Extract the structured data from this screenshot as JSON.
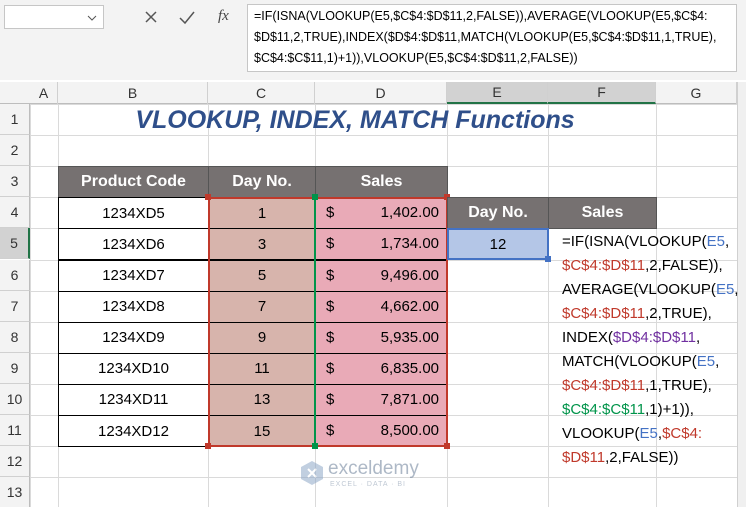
{
  "formula_bar": {
    "insert_function": "fx",
    "formula_lines": [
      "=IF(ISNA(VLOOKUP(E5,$C$4:$D$11,2,FALSE)),AVERAGE(VLOOKUP(E5,$C$4:",
      "$D$11,2,TRUE),INDEX($D$4:$D$11,MATCH(VLOOKUP(E5,$C$4:$D$11,1,TRUE),",
      "$C$4:$C$11,1)+1)),VLOOKUP(E5,$C$4:$D$11,2,FALSE))"
    ]
  },
  "column_headers": [
    "A",
    "B",
    "C",
    "D",
    "E",
    "F",
    "G"
  ],
  "row_headers": [
    "1",
    "2",
    "3",
    "4",
    "5",
    "6",
    "7",
    "8",
    "9",
    "10",
    "11",
    "12",
    "13"
  ],
  "title": "VLOOKUP, INDEX, MATCH Functions",
  "table": {
    "headers": [
      "Product Code",
      "Day No.",
      "Sales"
    ],
    "rows": [
      [
        "1234XD5",
        "1",
        "$",
        "1,402.00"
      ],
      [
        "1234XD6",
        "3",
        "$",
        "1,734.00"
      ],
      [
        "1234XD7",
        "5",
        "$",
        "9,496.00"
      ],
      [
        "1234XD8",
        "7",
        "$",
        "4,662.00"
      ],
      [
        "1234XD9",
        "9",
        "$",
        "5,935.00"
      ],
      [
        "1234XD10",
        "11",
        "$",
        "6,835.00"
      ],
      [
        "1234XD11",
        "13",
        "$",
        "7,871.00"
      ],
      [
        "1234XD12",
        "15",
        "$",
        "8,500.00"
      ]
    ]
  },
  "lookup": {
    "headers": [
      "Day No.",
      "Sales"
    ],
    "value": "12",
    "formula_display": [
      [
        {
          "text": "=IF(ISNA(VLOOKUP(",
          "color": "#000000"
        },
        {
          "text": "E5",
          "color": "#4472c4"
        },
        {
          "text": ",",
          "color": "#000000"
        }
      ],
      [
        {
          "text": "$C$4:$D$11",
          "color": "#c0392b"
        },
        {
          "text": ",2,FALSE)),",
          "color": "#000000"
        }
      ],
      [
        {
          "text": "AVERAGE(VLOOKUP(",
          "color": "#000000"
        },
        {
          "text": "E5",
          "color": "#4472c4"
        },
        {
          "text": ",",
          "color": "#000000"
        }
      ],
      [
        {
          "text": "$C$4:$D$11",
          "color": "#c0392b"
        },
        {
          "text": ",2,TRUE),",
          "color": "#000000"
        }
      ],
      [
        {
          "text": "INDEX(",
          "color": "#000000"
        },
        {
          "text": "$D$4:$D$11",
          "color": "#7030a0"
        },
        {
          "text": ",",
          "color": "#000000"
        }
      ],
      [
        {
          "text": "MATCH(VLOOKUP(",
          "color": "#000000"
        },
        {
          "text": "E5",
          "color": "#4472c4"
        },
        {
          "text": ",",
          "color": "#000000"
        }
      ],
      [
        {
          "text": "$C$4:$D$11",
          "color": "#c0392b"
        },
        {
          "text": ",1,TRUE),",
          "color": "#000000"
        }
      ],
      [
        {
          "text": "$C$4:$C$11",
          "color": "#00944a"
        },
        {
          "text": ",1)+1)),",
          "color": "#000000"
        }
      ],
      [
        {
          "text": "VLOOKUP(",
          "color": "#000000"
        },
        {
          "text": "E5",
          "color": "#4472c4"
        },
        {
          "text": ",",
          "color": "#000000"
        },
        {
          "text": "$C$4:",
          "color": "#c0392b"
        }
      ],
      [
        {
          "text": "$D$11",
          "color": "#c0392b"
        },
        {
          "text": ",2,FALSE))",
          "color": "#000000"
        }
      ]
    ]
  },
  "watermark": {
    "brand": "exceldemy",
    "tagline": "EXCEL · DATA · BI"
  }
}
